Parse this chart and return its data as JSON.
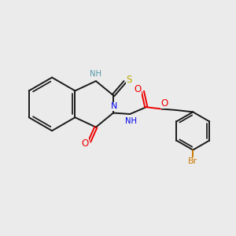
{
  "background_color": "#ebebeb",
  "bond_color": "#1a1a1a",
  "n_color": "#0000ee",
  "o_color": "#ee0000",
  "s_color": "#bbaa00",
  "br_color": "#cc7700",
  "nh_color": "#5599aa",
  "lw": 1.4,
  "xlim": [
    0,
    10
  ],
  "ylim": [
    0,
    9
  ]
}
